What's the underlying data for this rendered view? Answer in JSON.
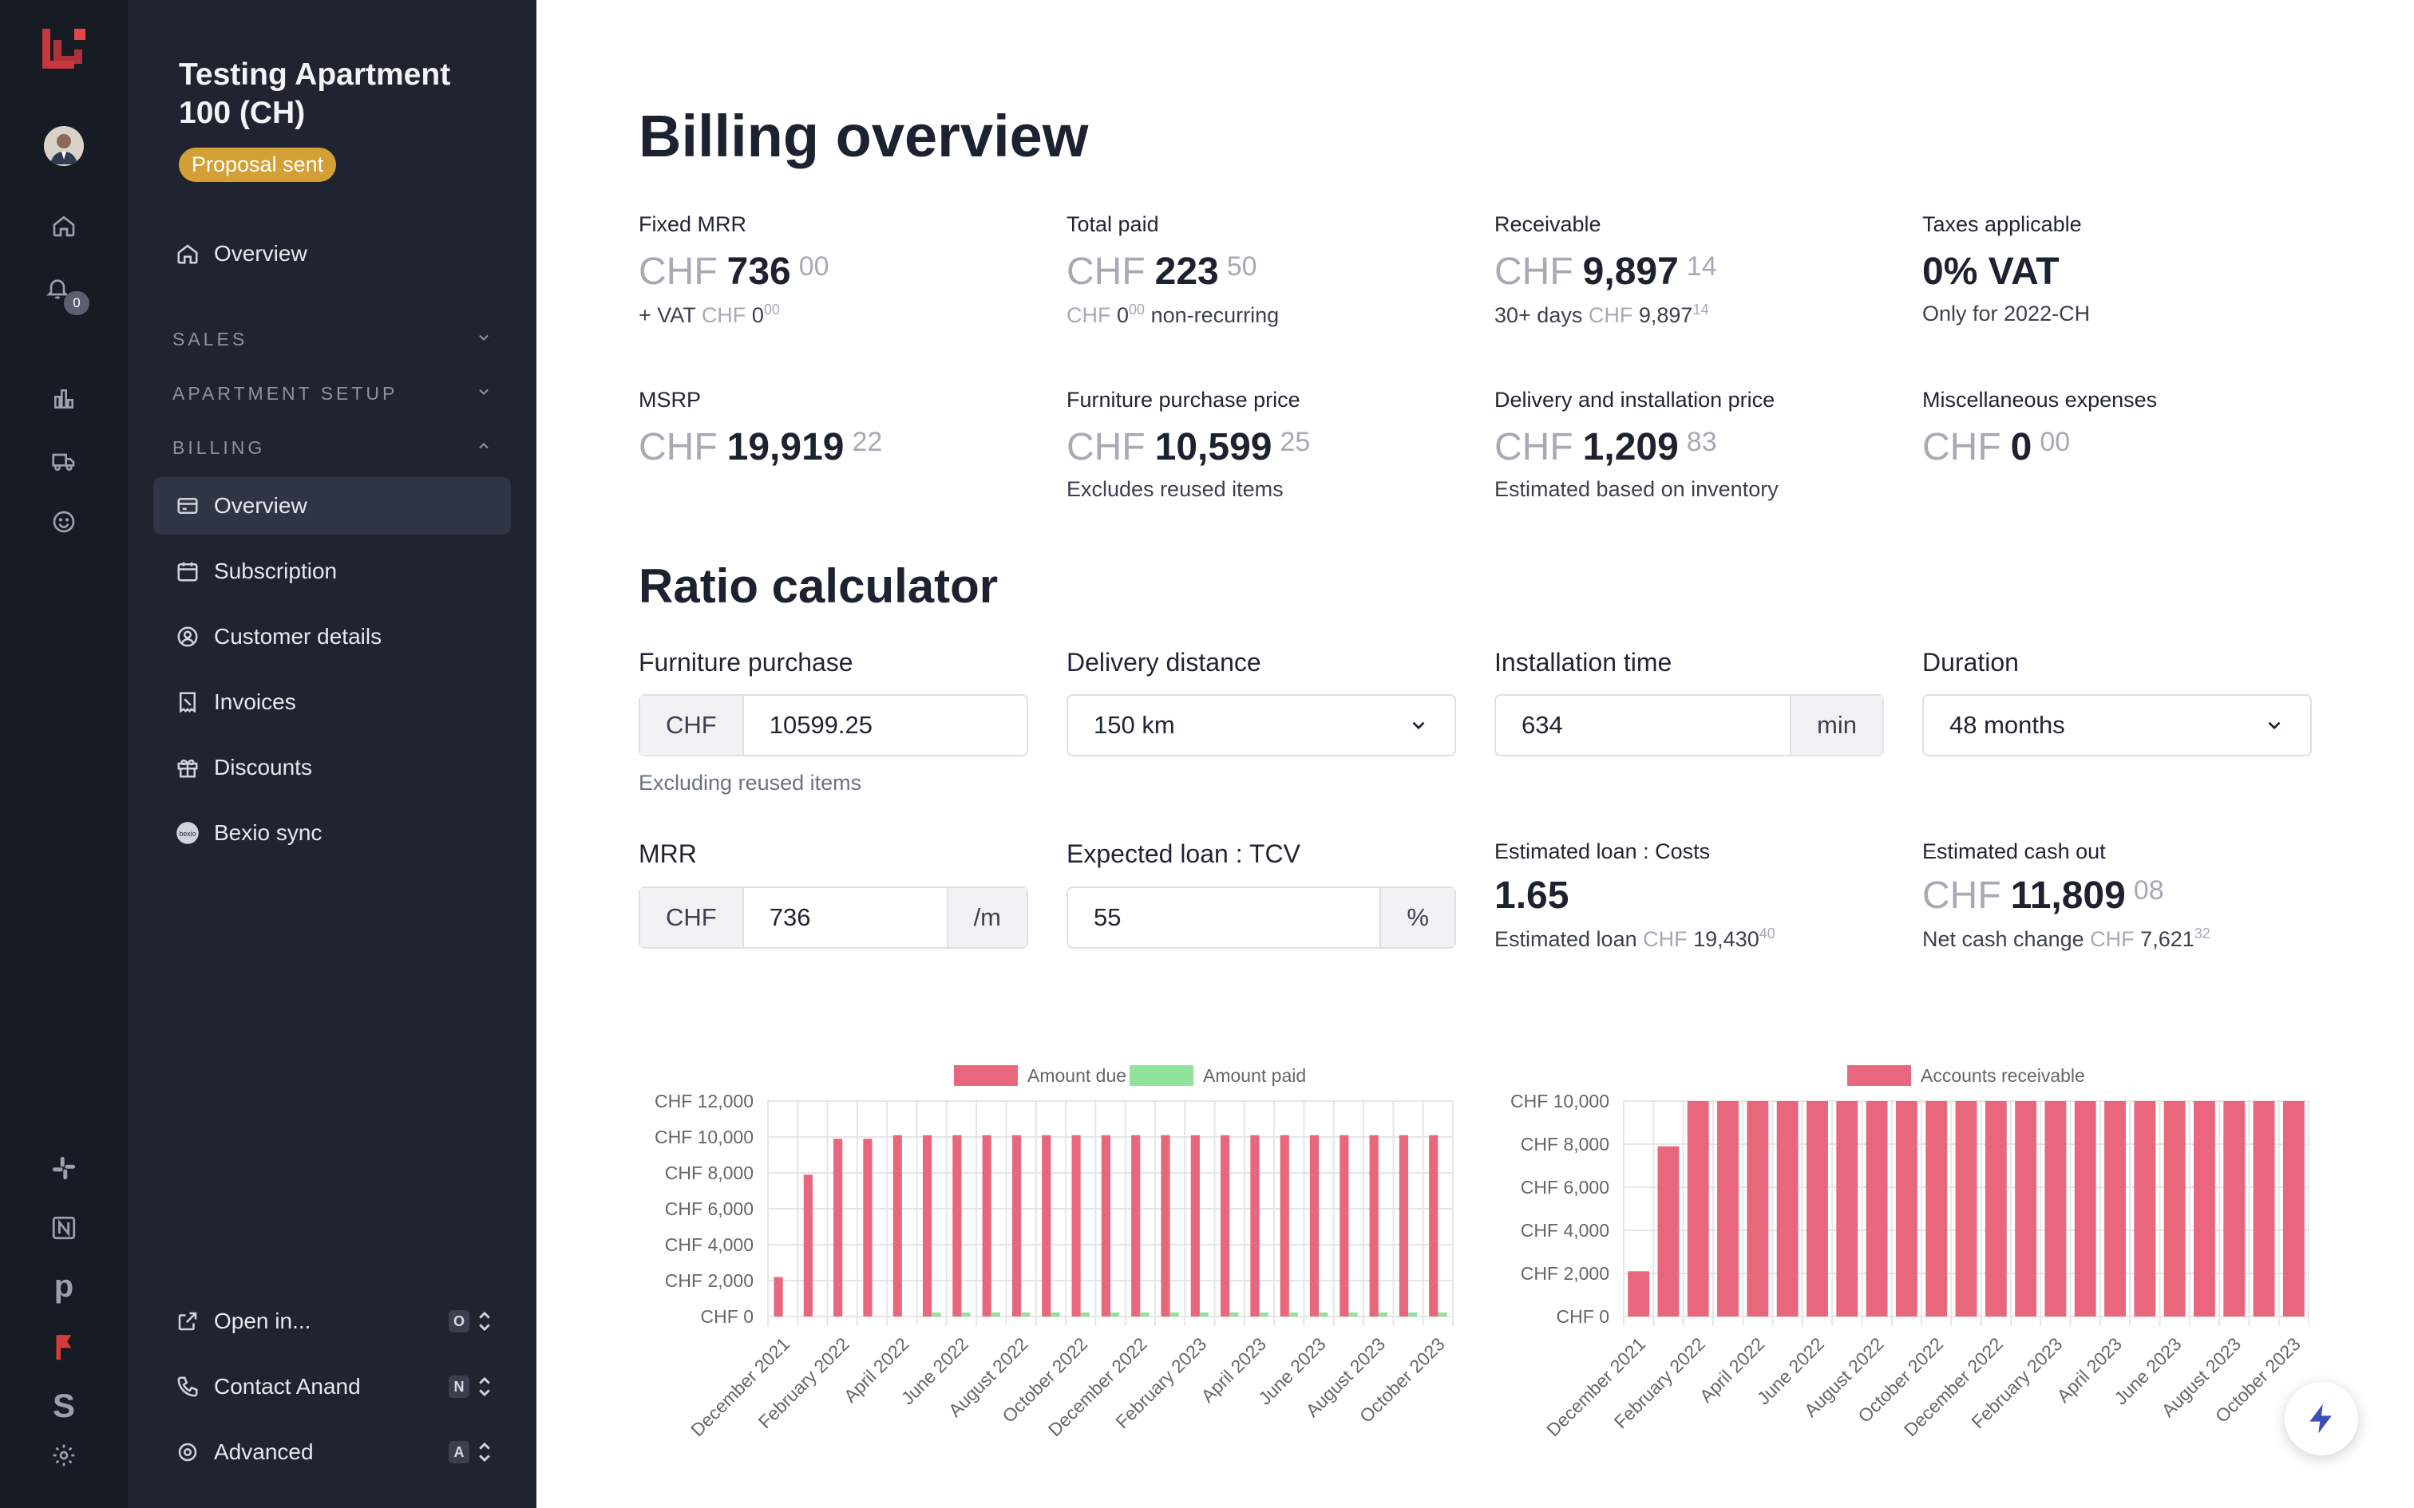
{
  "rail": {
    "icons": [
      "logo-icon",
      "avatar",
      "home-icon",
      "bell-icon",
      "chart-icon",
      "truck-icon",
      "smile-icon",
      "slack-icon",
      "notion-icon",
      "pipedrive-icon",
      "flag-icon",
      "stripe-icon",
      "settings-icon"
    ],
    "notification_count": "0",
    "brand_color": "#d63a3a"
  },
  "sidebar": {
    "project_title": "Testing Apartment 100 (CH)",
    "status_badge": "Proposal sent",
    "overview": "Overview",
    "sections": {
      "sales": "SALES",
      "apartment_setup": "APARTMENT SETUP",
      "billing": "BILLING"
    },
    "billing_items": [
      {
        "label": "Overview",
        "icon": "card-icon"
      },
      {
        "label": "Subscription",
        "icon": "calendar-icon"
      },
      {
        "label": "Customer details",
        "icon": "user-circle-icon"
      },
      {
        "label": "Invoices",
        "icon": "receipt-icon"
      },
      {
        "label": "Discounts",
        "icon": "gift-icon"
      },
      {
        "label": "Bexio sync",
        "icon": "bexio-icon"
      }
    ],
    "footer": [
      {
        "label": "Open in...",
        "key": "O"
      },
      {
        "label": "Contact Anand",
        "key": "N"
      },
      {
        "label": "Advanced",
        "key": "A"
      }
    ]
  },
  "billing": {
    "title": "Billing overview",
    "stats": [
      {
        "label": "Fixed MRR",
        "cur": "CHF",
        "main": "736",
        "cents": "00",
        "sub": {
          "pre": "+ VAT",
          "cur": "CHF",
          "val": "0",
          "cents": "00",
          "post": ""
        }
      },
      {
        "label": "Total paid",
        "cur": "CHF",
        "main": "223",
        "cents": "50",
        "sub": {
          "pre": "",
          "cur": "CHF",
          "val": "0",
          "cents": "00",
          "post": "non-recurring"
        }
      },
      {
        "label": "Receivable",
        "cur": "CHF",
        "main": "9,897",
        "cents": "14",
        "sub": {
          "pre": "30+ days",
          "cur": "CHF",
          "val": "9,897",
          "cents": "14",
          "post": ""
        }
      },
      {
        "label": "Taxes applicable",
        "cur": "",
        "main": "0% VAT",
        "cents": "",
        "sub": {
          "pre": "Only for 2022-CH",
          "cur": "",
          "val": "",
          "cents": "",
          "post": ""
        }
      },
      {
        "label": "MSRP",
        "cur": "CHF",
        "main": "19,919",
        "cents": "22",
        "sub": null
      },
      {
        "label": "Furniture purchase price",
        "cur": "CHF",
        "main": "10,599",
        "cents": "25",
        "sub": {
          "pre": "Excludes reused items",
          "cur": "",
          "val": "",
          "cents": "",
          "post": ""
        }
      },
      {
        "label": "Delivery and installation price",
        "cur": "CHF",
        "main": "1,209",
        "cents": "83",
        "sub": {
          "pre": "Estimated based on inventory",
          "cur": "",
          "val": "",
          "cents": "",
          "post": ""
        }
      },
      {
        "label": "Miscellaneous expenses",
        "cur": "CHF",
        "main": "0",
        "cents": "00",
        "sub": null
      }
    ]
  },
  "ratio": {
    "title": "Ratio calculator",
    "furniture_purchase": {
      "label": "Furniture purchase",
      "prefix": "CHF",
      "value": "10599.25",
      "help": "Excluding reused items"
    },
    "delivery_distance": {
      "label": "Delivery distance",
      "value": "150 km"
    },
    "installation_time": {
      "label": "Installation time",
      "value": "634",
      "suffix": "min"
    },
    "duration": {
      "label": "Duration",
      "value": "48 months"
    },
    "mrr": {
      "label": "MRR",
      "prefix": "CHF",
      "value": "736",
      "suffix": "/m"
    },
    "loan_tcv": {
      "label": "Expected loan : TCV",
      "value": "55",
      "suffix": "%"
    },
    "loan_costs": {
      "label": "Estimated loan : Costs",
      "value": "1.65",
      "sub_pre": "Estimated loan",
      "sub_cur": "CHF",
      "sub_val": "19,430",
      "sub_cents": "40"
    },
    "cash_out": {
      "label": "Estimated cash out",
      "cur": "CHF",
      "main": "11,809",
      "cents": "08",
      "sub_pre": "Net cash change",
      "sub_cur": "CHF",
      "sub_val": "7,621",
      "sub_cents": "32"
    }
  },
  "chart_data": [
    {
      "type": "bar",
      "title": "",
      "legend_position": "top",
      "categories": [
        "December 2021",
        "January 2022",
        "February 2022",
        "March 2022",
        "April 2022",
        "May 2022",
        "June 2022",
        "July 2022",
        "August 2022",
        "September 2022",
        "October 2022",
        "November 2022",
        "December 2022",
        "January 2023",
        "February 2023",
        "March 2023",
        "April 2023",
        "May 2023",
        "June 2023",
        "July 2023",
        "August 2023",
        "September 2023",
        "October 2023"
      ],
      "tick_labels": [
        "December 2021",
        "February 2022",
        "April 2022",
        "June 2022",
        "August 2022",
        "October 2022",
        "December 2022",
        "February 2023",
        "April 2023",
        "June 2023",
        "August 2023",
        "October 2023"
      ],
      "series": [
        {
          "name": "Amount due",
          "color": "#e8677c",
          "values": [
            2200,
            7900,
            9900,
            9900,
            10100,
            10100,
            10100,
            10100,
            10100,
            10100,
            10100,
            10100,
            10100,
            10100,
            10100,
            10100,
            10100,
            10100,
            10100,
            10100,
            10100,
            10100,
            10100
          ]
        },
        {
          "name": "Amount paid",
          "color": "#8fe39a",
          "values": [
            0,
            0,
            0,
            0,
            0,
            224,
            224,
            224,
            224,
            224,
            224,
            224,
            224,
            224,
            224,
            224,
            224,
            224,
            224,
            224,
            224,
            224,
            224
          ]
        }
      ],
      "yticks": [
        "CHF 0",
        "CHF 2,000",
        "CHF 4,000",
        "CHF 6,000",
        "CHF 8,000",
        "CHF 10,000",
        "CHF 12,000"
      ],
      "ylim": [
        0,
        12000
      ],
      "grid": true
    },
    {
      "type": "bar",
      "title": "",
      "legend_position": "top",
      "categories": [
        "December 2021",
        "January 2022",
        "February 2022",
        "March 2022",
        "April 2022",
        "May 2022",
        "June 2022",
        "July 2022",
        "August 2022",
        "September 2022",
        "October 2022",
        "November 2022",
        "December 2022",
        "January 2023",
        "February 2023",
        "March 2023",
        "April 2023",
        "May 2023",
        "June 2023",
        "July 2023",
        "August 2023",
        "September 2023",
        "October 2023"
      ],
      "tick_labels": [
        "December 2021",
        "February 2022",
        "April 2022",
        "June 2022",
        "August 2022",
        "October 2022",
        "December 2022",
        "February 2023",
        "April 2023",
        "June 2023",
        "August 2023",
        "October 2023"
      ],
      "series": [
        {
          "name": "Accounts receivable",
          "color": "#e8677c",
          "values": [
            2100,
            7900,
            10000,
            10000,
            10000,
            10000,
            10000,
            10000,
            10000,
            10000,
            10000,
            10000,
            10000,
            10000,
            10000,
            10000,
            10000,
            10000,
            10000,
            10000,
            10000,
            10000,
            10000
          ]
        }
      ],
      "yticks": [
        "CHF 0",
        "CHF 2,000",
        "CHF 4,000",
        "CHF 6,000",
        "CHF 8,000",
        "CHF 10,000"
      ],
      "ylim": [
        0,
        10000
      ],
      "grid": true
    }
  ]
}
